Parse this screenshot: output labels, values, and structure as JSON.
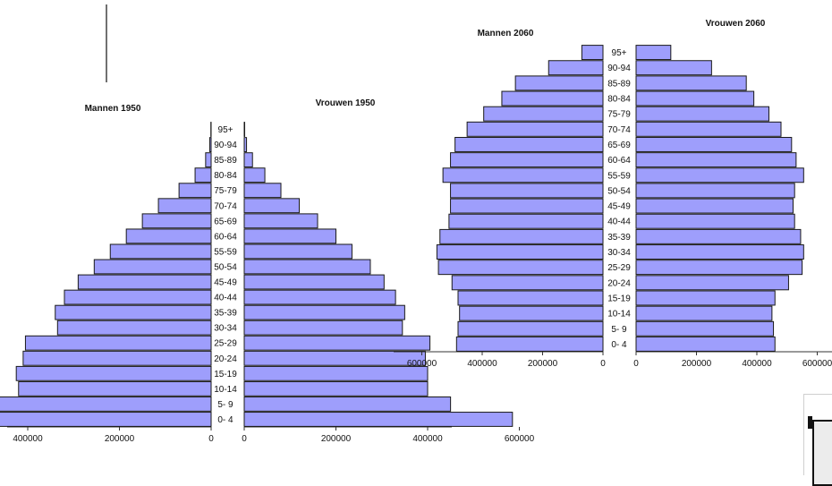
{
  "chart_data": [
    {
      "type": "bar",
      "orientation": "horizontal-pyramid",
      "left_title": "Mannen 1950",
      "right_title": "Vrouwen 1950",
      "categories": [
        "0- 4",
        "5- 9",
        "10-14",
        "15-19",
        "20-24",
        "25-29",
        "30-34",
        "35-39",
        "40-44",
        "45-49",
        "50-54",
        "55-59",
        "60-64",
        "65-69",
        "70-74",
        "75-79",
        "80-84",
        "85-89",
        "90-94",
        "95+"
      ],
      "series": [
        {
          "name": "Mannen 1950",
          "side": "left",
          "values": [
            610000,
            475000,
            420000,
            425000,
            410000,
            405000,
            335000,
            340000,
            320000,
            290000,
            255000,
            220000,
            185000,
            150000,
            115000,
            70000,
            35000,
            12000,
            3000,
            600
          ]
        },
        {
          "name": "Vrouwen 1950",
          "side": "right",
          "values": [
            585000,
            450000,
            400000,
            400000,
            395000,
            405000,
            345000,
            350000,
            330000,
            305000,
            275000,
            235000,
            200000,
            160000,
            120000,
            80000,
            45000,
            18000,
            5000,
            1000
          ]
        }
      ],
      "left_ticks": [
        "600000",
        "400000",
        "200000",
        "0"
      ],
      "right_ticks": [
        "0",
        "200000",
        "400000",
        "600000"
      ],
      "xlim": [
        0,
        650000
      ]
    },
    {
      "type": "bar",
      "orientation": "horizontal-pyramid",
      "left_title": "Mannen 2060",
      "right_title": "Vrouwen 2060",
      "categories": [
        "0- 4",
        "5- 9",
        "10-14",
        "15-19",
        "20-24",
        "25-29",
        "30-34",
        "35-39",
        "40-44",
        "45-49",
        "50-54",
        "55-59",
        "60-64",
        "65-69",
        "70-74",
        "75-79",
        "80-84",
        "85-89",
        "90-94",
        "95+"
      ],
      "series": [
        {
          "name": "Mannen 2060",
          "side": "left",
          "values": [
            485000,
            480000,
            475000,
            480000,
            500000,
            545000,
            550000,
            540000,
            510000,
            505000,
            505000,
            530000,
            505000,
            490000,
            450000,
            395000,
            335000,
            290000,
            180000,
            70000
          ]
        },
        {
          "name": "Vrouwen 2060",
          "side": "right",
          "values": [
            460000,
            455000,
            450000,
            460000,
            505000,
            550000,
            555000,
            545000,
            525000,
            520000,
            525000,
            555000,
            530000,
            515000,
            480000,
            440000,
            390000,
            365000,
            250000,
            115000
          ]
        }
      ],
      "left_ticks": [
        "600000",
        "400000",
        "200000",
        "0"
      ],
      "right_ticks": [
        "0",
        "200000",
        "400000",
        "600000"
      ],
      "xlim": [
        0,
        630000
      ]
    }
  ],
  "colors": {
    "bar_fill": "#9e9efc",
    "bar_stroke": "#1a1a1a",
    "axis": "#333333",
    "text": "#111111"
  }
}
